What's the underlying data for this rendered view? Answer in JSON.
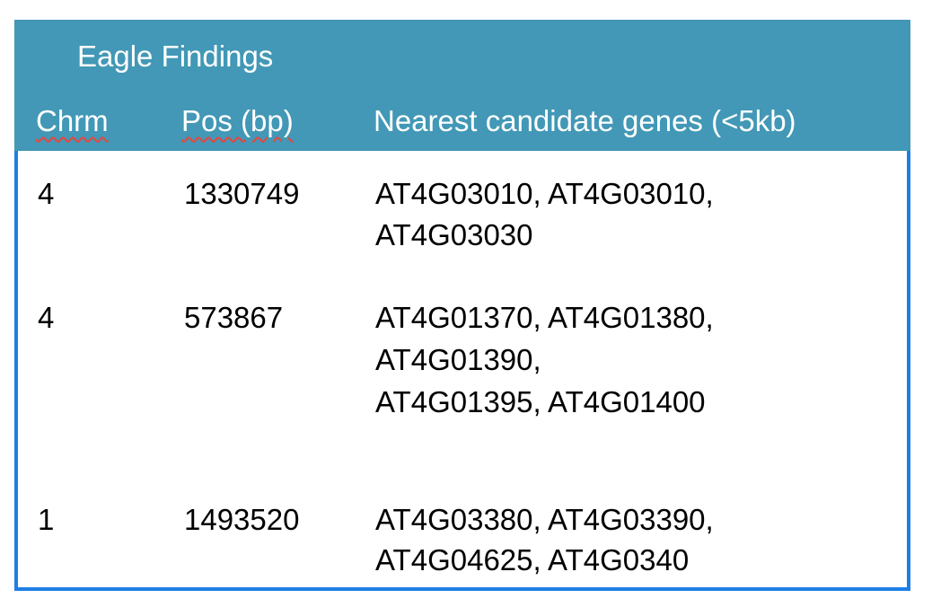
{
  "table": {
    "title": "Eagle Findings",
    "columns": [
      "Chrm",
      "Pos (bp)",
      "Nearest candidate genes (<5kb)"
    ],
    "rows": [
      {
        "chrm": "4",
        "pos": "1330749",
        "genes": [
          "AT4G03010, AT4G03010,",
          "AT4G03030"
        ]
      },
      {
        "chrm": "4",
        "pos": "573867",
        "genes": [
          "AT4G01370, AT4G01380,",
          "AT4G01390,",
          "AT4G01395, AT4G01400"
        ]
      },
      {
        "chrm": "1",
        "pos": "1493520",
        "genes": [
          "AT4G03380, AT4G03390,",
          "AT4G04625, AT4G0340"
        ]
      }
    ]
  },
  "colors": {
    "header_bg": "#4298b6",
    "header_text": "#ffffff",
    "border": "#1e7ee6",
    "spellcheck_underline": "#e8453c"
  }
}
